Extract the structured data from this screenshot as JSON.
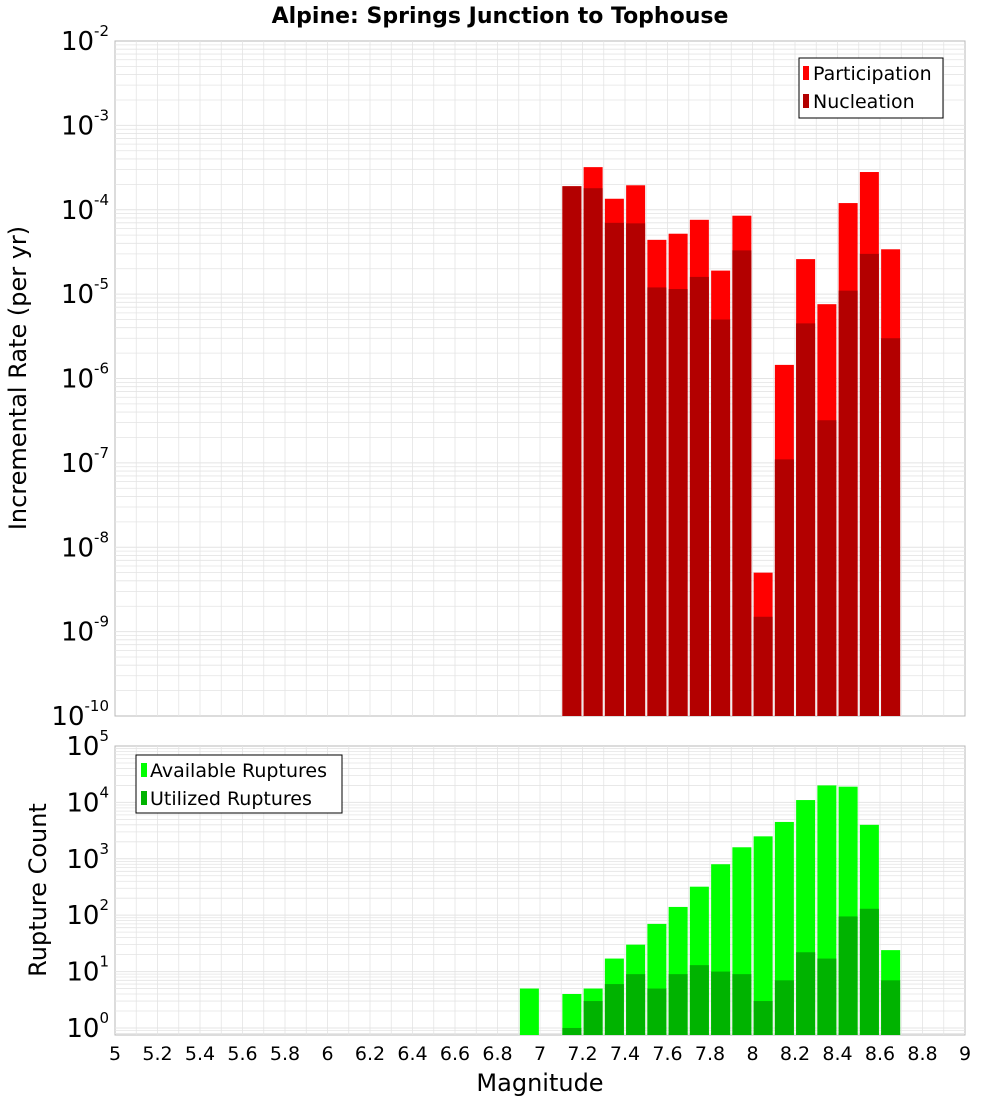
{
  "colors": {
    "participation": "#ff0000",
    "nucleation": "#b30000",
    "available": "#00ff00",
    "utilized": "#00b300",
    "grid": "#e4e4e4",
    "frame": "#b8b8b8"
  },
  "chart_data": [
    {
      "type": "bar",
      "title": "Alpine: Springs Junction to Tophouse",
      "ylabel": "Incremental Rate (per yr)",
      "xlabel": "",
      "y_scale": "log",
      "ylim": [
        1e-10,
        0.01
      ],
      "xlim": [
        5,
        9
      ],
      "y_ticks": [
        {
          "base": "10",
          "exp": "-10"
        },
        {
          "base": "10",
          "exp": "-9"
        },
        {
          "base": "10",
          "exp": "-8"
        },
        {
          "base": "10",
          "exp": "-7"
        },
        {
          "base": "10",
          "exp": "-6"
        },
        {
          "base": "10",
          "exp": "-5"
        },
        {
          "base": "10",
          "exp": "-4"
        },
        {
          "base": "10",
          "exp": "-3"
        },
        {
          "base": "10",
          "exp": "-2"
        }
      ],
      "legend": {
        "position": "top-right",
        "items": [
          "Participation",
          "Nucleation"
        ]
      },
      "x": [
        7.15,
        7.25,
        7.35,
        7.45,
        7.55,
        7.65,
        7.75,
        7.85,
        7.95,
        8.05,
        8.15,
        8.25,
        8.35,
        8.45,
        8.55,
        8.65
      ],
      "series": [
        {
          "name": "Participation",
          "values": [
            0.00019,
            0.00032,
            0.000135,
            0.000195,
            4.4e-05,
            5.2e-05,
            7.6e-05,
            1.9e-05,
            8.5e-05,
            5e-09,
            1.45e-06,
            2.6e-05,
            7.6e-06,
            0.00012,
            0.00028,
            3.4e-05
          ]
        },
        {
          "name": "Nucleation",
          "values": [
            0.00019,
            0.00018,
            7e-05,
            6.9e-05,
            1.2e-05,
            1.15e-05,
            1.6e-05,
            5e-06,
            3.3e-05,
            1.5e-09,
            1.1e-07,
            4.5e-06,
            3.2e-07,
            1.1e-05,
            3e-05,
            3e-06
          ]
        }
      ]
    },
    {
      "type": "bar",
      "title": "",
      "ylabel": "Rupture Count",
      "xlabel": "Magnitude",
      "y_scale": "log",
      "ylim": [
        0.75,
        100000.0
      ],
      "xlim": [
        5,
        9
      ],
      "x_ticks": [
        "5",
        "5.2",
        "5.4",
        "5.6",
        "5.8",
        "6",
        "6.2",
        "6.4",
        "6.6",
        "6.8",
        "7",
        "7.2",
        "7.4",
        "7.6",
        "7.8",
        "8",
        "8.2",
        "8.4",
        "8.6",
        "8.8",
        "9"
      ],
      "y_ticks": [
        {
          "base": "10",
          "exp": "0"
        },
        {
          "base": "10",
          "exp": "1"
        },
        {
          "base": "10",
          "exp": "2"
        },
        {
          "base": "10",
          "exp": "3"
        },
        {
          "base": "10",
          "exp": "4"
        },
        {
          "base": "10",
          "exp": "5"
        }
      ],
      "legend": {
        "position": "top-left",
        "items": [
          "Available Ruptures",
          "Utilized Ruptures"
        ]
      },
      "x": [
        6.95,
        7.15,
        7.25,
        7.35,
        7.45,
        7.55,
        7.65,
        7.75,
        7.85,
        7.95,
        8.05,
        8.15,
        8.25,
        8.35,
        8.45,
        8.55,
        8.65
      ],
      "series": [
        {
          "name": "Available Ruptures",
          "values": [
            5,
            4,
            5,
            17,
            30,
            70,
            140,
            320,
            800,
            1600,
            2500,
            4500,
            11000,
            20000,
            19000,
            4000,
            24
          ]
        },
        {
          "name": "Utilized Ruptures",
          "values": [
            0,
            1,
            3,
            6,
            9,
            5,
            9,
            13,
            10,
            9,
            3,
            7,
            22,
            17,
            95,
            130,
            7
          ]
        }
      ]
    }
  ]
}
